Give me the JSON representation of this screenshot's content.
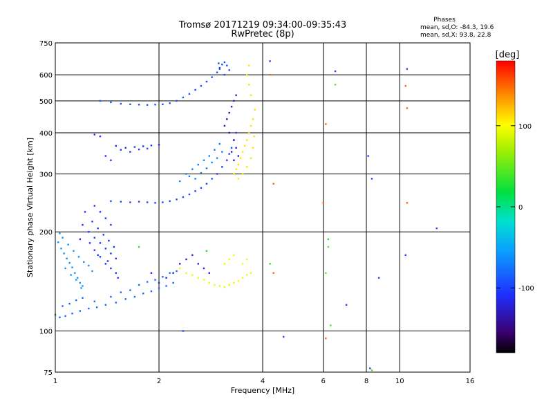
{
  "chart_data": {
    "type": "scatter",
    "title": "Tromsø 20171219 09:34:00-09:35:43",
    "subtitle": "RwPretec (8p)",
    "stats": {
      "heading": "Phases",
      "line1": "mean, sd,O: -84.3, 19.6",
      "line2": "mean, sd,X:  93.8, 22.8"
    },
    "xlabel": "Frequency [MHz]",
    "ylabel": "Stationary phase Virtual Height [km]",
    "xscale": "log",
    "yscale": "log",
    "xlim": [
      1,
      16
    ],
    "ylim": [
      75,
      750
    ],
    "xticks": [
      1,
      2,
      4,
      6,
      8,
      10,
      16
    ],
    "xtick_labels": [
      "1",
      "2",
      "4",
      "6",
      "8",
      "10",
      "16"
    ],
    "yticks": [
      75,
      100,
      200,
      300,
      400,
      500,
      600,
      750
    ],
    "ytick_labels": [
      "75",
      "100",
      "200",
      "300",
      "400",
      "500",
      "600",
      "750"
    ],
    "grid": true,
    "colorbar": {
      "label": "[deg]",
      "range": [
        -180,
        180
      ],
      "ticks": [
        100,
        0,
        -100
      ],
      "tick_labels": [
        "100",
        "0",
        "-100"
      ]
    },
    "series": [
      {
        "color_value": -80,
        "points": [
          [
            1.0,
            112
          ],
          [
            1.03,
            110
          ],
          [
            1.07,
            111
          ],
          [
            1.12,
            113
          ],
          [
            1.18,
            115
          ],
          [
            1.25,
            117
          ],
          [
            1.32,
            118
          ],
          [
            1.4,
            120
          ],
          [
            1.5,
            122
          ],
          [
            1.6,
            125
          ],
          [
            1.7,
            127
          ],
          [
            1.8,
            130
          ],
          [
            1.9,
            132
          ],
          [
            2.0,
            135
          ],
          [
            2.1,
            137
          ],
          [
            2.2,
            140
          ],
          [
            1.05,
            119
          ],
          [
            1.1,
            121
          ],
          [
            1.15,
            124
          ],
          [
            1.2,
            126
          ],
          [
            1.3,
            123
          ],
          [
            1.45,
            127
          ],
          [
            1.55,
            131
          ],
          [
            1.65,
            133
          ],
          [
            1.75,
            138
          ],
          [
            1.85,
            141
          ],
          [
            1.95,
            143
          ],
          [
            2.05,
            146
          ],
          [
            2.15,
            150
          ],
          [
            2.25,
            152
          ]
        ]
      },
      {
        "color_value": -60,
        "points": [
          [
            1.02,
            186
          ],
          [
            1.04,
            178
          ],
          [
            1.06,
            172
          ],
          [
            1.08,
            166
          ],
          [
            1.1,
            161
          ],
          [
            1.12,
            156
          ],
          [
            1.14,
            150
          ],
          [
            1.16,
            145
          ],
          [
            1.18,
            140
          ],
          [
            1.2,
            137
          ],
          [
            1.05,
            192
          ],
          [
            1.09,
            183
          ],
          [
            1.13,
            175
          ],
          [
            1.17,
            168
          ],
          [
            1.21,
            162
          ],
          [
            1.25,
            158
          ],
          [
            1.28,
            152
          ],
          [
            1.03,
            198
          ],
          [
            1.07,
            155
          ],
          [
            1.11,
            148
          ],
          [
            1.15,
            143
          ],
          [
            1.19,
            135
          ]
        ]
      },
      {
        "color_value": -110,
        "points": [
          [
            1.2,
            210
          ],
          [
            1.25,
            200
          ],
          [
            1.3,
            192
          ],
          [
            1.35,
            185
          ],
          [
            1.4,
            178
          ],
          [
            1.45,
            172
          ],
          [
            1.5,
            166
          ],
          [
            1.22,
            230
          ],
          [
            1.28,
            215
          ],
          [
            1.33,
            205
          ],
          [
            1.38,
            196
          ],
          [
            1.43,
            188
          ],
          [
            1.48,
            180
          ],
          [
            1.3,
            176
          ],
          [
            1.35,
            168
          ],
          [
            1.4,
            160
          ],
          [
            1.45,
            155
          ],
          [
            1.5,
            150
          ],
          [
            1.52,
            145
          ],
          [
            1.18,
            190
          ],
          [
            1.26,
            185
          ],
          [
            1.33,
            170
          ],
          [
            1.42,
            163
          ],
          [
            1.3,
            240
          ],
          [
            1.35,
            230
          ],
          [
            1.4,
            220
          ],
          [
            1.45,
            210
          ]
        ]
      },
      {
        "color_value": -100,
        "points": [
          [
            1.45,
            248
          ],
          [
            1.55,
            247
          ],
          [
            1.65,
            246
          ],
          [
            1.75,
            247
          ],
          [
            1.85,
            246
          ],
          [
            1.95,
            245
          ],
          [
            2.05,
            246
          ],
          [
            2.15,
            248
          ],
          [
            2.25,
            251
          ],
          [
            2.35,
            255
          ],
          [
            2.45,
            260
          ],
          [
            2.55,
            266
          ],
          [
            2.65,
            272
          ],
          [
            2.75,
            280
          ],
          [
            2.85,
            290
          ],
          [
            2.95,
            300
          ],
          [
            3.05,
            315
          ],
          [
            3.15,
            330
          ],
          [
            3.2,
            345
          ],
          [
            3.25,
            360
          ],
          [
            3.3,
            380
          ],
          [
            3.35,
            400
          ]
        ]
      },
      {
        "color_value": -70,
        "points": [
          [
            2.4,
            300
          ],
          [
            2.5,
            310
          ],
          [
            2.6,
            320
          ],
          [
            2.7,
            330
          ],
          [
            2.8,
            340
          ],
          [
            2.9,
            355
          ],
          [
            3.0,
            370
          ],
          [
            2.55,
            290
          ],
          [
            2.65,
            302
          ],
          [
            2.75,
            312
          ],
          [
            2.85,
            325
          ],
          [
            2.95,
            335
          ],
          [
            3.05,
            350
          ],
          [
            2.3,
            285
          ],
          [
            2.45,
            295
          ]
        ]
      },
      {
        "color_value": -95,
        "points": [
          [
            1.35,
            500
          ],
          [
            1.45,
            495
          ],
          [
            1.55,
            490
          ],
          [
            1.65,
            488
          ],
          [
            1.75,
            487
          ],
          [
            1.85,
            486
          ],
          [
            1.95,
            487
          ],
          [
            2.05,
            488
          ],
          [
            2.15,
            492
          ],
          [
            2.25,
            500
          ],
          [
            2.35,
            512
          ],
          [
            2.45,
            525
          ],
          [
            2.55,
            540
          ],
          [
            2.65,
            555
          ],
          [
            2.75,
            572
          ],
          [
            2.85,
            590
          ],
          [
            2.95,
            610
          ],
          [
            3.0,
            630
          ],
          [
            3.05,
            645
          ],
          [
            3.1,
            655
          ],
          [
            3.15,
            640
          ],
          [
            3.2,
            620
          ],
          [
            3.1,
            600
          ],
          [
            3.0,
            625
          ],
          [
            2.98,
            650
          ]
        ]
      },
      {
        "color_value": -110,
        "points": [
          [
            1.3,
            395
          ],
          [
            1.35,
            390
          ],
          [
            1.5,
            365
          ],
          [
            1.6,
            360
          ],
          [
            1.7,
            362
          ],
          [
            1.8,
            364
          ],
          [
            1.9,
            366
          ],
          [
            2.0,
            368
          ],
          [
            1.4,
            340
          ],
          [
            1.45,
            330
          ],
          [
            1.55,
            355
          ],
          [
            1.65,
            350
          ],
          [
            1.75,
            356
          ],
          [
            1.85,
            358
          ]
        ]
      },
      {
        "color_value": -130,
        "points": [
          [
            3.1,
            420
          ],
          [
            3.15,
            440
          ],
          [
            3.2,
            460
          ],
          [
            3.25,
            480
          ],
          [
            3.3,
            500
          ],
          [
            3.35,
            520
          ],
          [
            3.2,
            400
          ],
          [
            3.3,
            380
          ],
          [
            3.35,
            360
          ],
          [
            3.4,
            340
          ],
          [
            3.3,
            330
          ],
          [
            3.25,
            350
          ]
        ]
      },
      {
        "color_value": 110,
        "points": [
          [
            3.3,
            300
          ],
          [
            3.35,
            310
          ],
          [
            3.4,
            320
          ],
          [
            3.45,
            335
          ],
          [
            3.5,
            350
          ],
          [
            3.55,
            365
          ],
          [
            3.6,
            380
          ],
          [
            3.65,
            400
          ],
          [
            3.7,
            420
          ],
          [
            3.75,
            440
          ],
          [
            3.4,
            290
          ],
          [
            3.5,
            300
          ],
          [
            3.6,
            315
          ],
          [
            3.7,
            335
          ],
          [
            3.75,
            360
          ],
          [
            3.78,
            390
          ],
          [
            3.8,
            470
          ],
          [
            3.7,
            520
          ],
          [
            3.65,
            560
          ],
          [
            3.6,
            600
          ],
          [
            3.65,
            640
          ]
        ]
      },
      {
        "color_value": 95,
        "points": [
          [
            2.3,
            155
          ],
          [
            2.4,
            150
          ],
          [
            2.5,
            148
          ],
          [
            2.6,
            145
          ],
          [
            2.7,
            143
          ],
          [
            2.8,
            140
          ],
          [
            2.9,
            138
          ],
          [
            3.0,
            137
          ],
          [
            3.1,
            136
          ],
          [
            3.2,
            138
          ],
          [
            3.3,
            140
          ],
          [
            3.4,
            142
          ],
          [
            3.5,
            145
          ],
          [
            3.6,
            148
          ],
          [
            3.7,
            150
          ],
          [
            3.1,
            160
          ],
          [
            3.2,
            165
          ],
          [
            3.3,
            170
          ],
          [
            3.5,
            160
          ],
          [
            3.6,
            165
          ]
        ]
      },
      {
        "color_value": -120,
        "points": [
          [
            2.6,
            160
          ],
          [
            2.7,
            155
          ],
          [
            2.8,
            150
          ],
          [
            2.5,
            170
          ],
          [
            2.4,
            165
          ],
          [
            2.3,
            160
          ],
          [
            2.2,
            150
          ],
          [
            2.1,
            145
          ],
          [
            2.0,
            140
          ],
          [
            1.9,
            150
          ]
        ]
      },
      {
        "color_value": 30,
        "points": [
          [
            1.75,
            180
          ],
          [
            2.75,
            175
          ],
          [
            6.2,
            190
          ],
          [
            4.2,
            160
          ]
        ]
      },
      {
        "color_value": -100,
        "points": [
          [
            4.2,
            660
          ],
          [
            6.5,
            615
          ],
          [
            8.1,
            340
          ],
          [
            8.3,
            290
          ],
          [
            8.7,
            145
          ],
          [
            10.4,
            170
          ],
          [
            10.5,
            625
          ],
          [
            12.8,
            205
          ],
          [
            4.6,
            96
          ],
          [
            7.0,
            120
          ],
          [
            8.2,
            77
          ],
          [
            2.35,
            100
          ]
        ]
      },
      {
        "color_value": 150,
        "points": [
          [
            6.1,
            425
          ],
          [
            6.0,
            245
          ],
          [
            10.5,
            245
          ],
          [
            10.5,
            475
          ],
          [
            4.3,
            280
          ],
          [
            6.1,
            95
          ],
          [
            4.3,
            150
          ],
          [
            10.4,
            555
          ],
          [
            4.2,
            600
          ]
        ]
      },
      {
        "color_value": 45,
        "points": [
          [
            6.5,
            560
          ],
          [
            6.2,
            180
          ],
          [
            6.1,
            150
          ],
          [
            6.3,
            104
          ],
          [
            8.3,
            76
          ]
        ]
      }
    ]
  }
}
